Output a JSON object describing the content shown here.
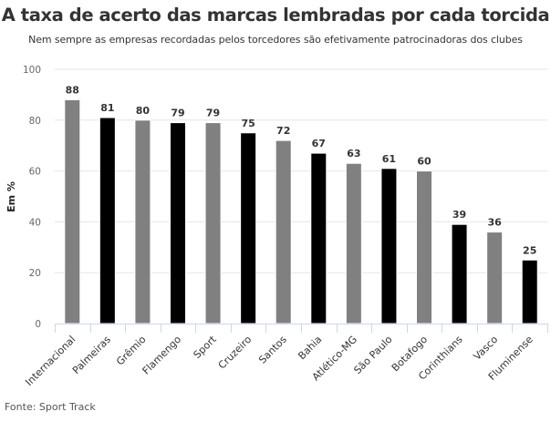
{
  "chart_data": {
    "type": "bar",
    "title": "A taxa de acerto das marcas lembradas por cada torcida",
    "subtitle": "Nem sempre as empresas recordadas pelos torcedores são efetivamente patrocinadoras dos clubes",
    "xlabel": "",
    "ylabel": "Em %",
    "ylim": [
      0,
      100
    ],
    "yticks": [
      0,
      20,
      40,
      60,
      80,
      100
    ],
    "grid": true,
    "categories": [
      "Internacional",
      "Palmeiras",
      "Grêmio",
      "Flamengo",
      "Sport",
      "Cruzeiro",
      "Santos",
      "Bahia",
      "Atlético-MG",
      "São Paulo",
      "Botafogo",
      "Corinthians",
      "Vasco",
      "Fluminense"
    ],
    "values": [
      88,
      81,
      80,
      79,
      79,
      75,
      72,
      67,
      63,
      61,
      60,
      39,
      36,
      25
    ],
    "bar_colors": [
      "#808080",
      "#000000",
      "#808080",
      "#000000",
      "#808080",
      "#000000",
      "#808080",
      "#000000",
      "#808080",
      "#000000",
      "#808080",
      "#000000",
      "#808080",
      "#000000"
    ],
    "source": "Fonte: Sport Track"
  }
}
